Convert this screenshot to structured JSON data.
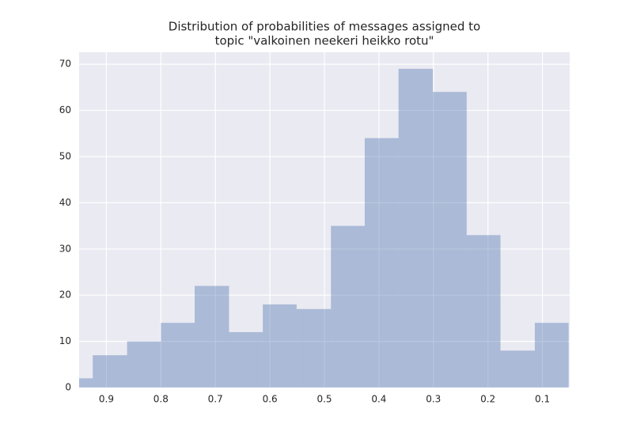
{
  "chart_data": {
    "type": "histogram",
    "title": [
      "Distribution of probabilities of messages assigned to",
      "topic \"valkoinen neekeri heikko rotu\""
    ],
    "bins": [
      0.95,
      0.925,
      0.862,
      0.8,
      0.738,
      0.675,
      0.613,
      0.551,
      0.488,
      0.426,
      0.364,
      0.301,
      0.239,
      0.177,
      0.114,
      0.052
    ],
    "values": [
      2,
      7,
      10,
      14,
      22,
      12,
      18,
      17,
      35,
      54,
      69,
      64,
      33,
      8,
      14
    ],
    "color": "#4c72b0",
    "xlim": [
      0.95,
      0.05
    ],
    "xticks": [
      0.9,
      0.8,
      0.7,
      0.6,
      0.5,
      0.4,
      0.3,
      0.2,
      0.1
    ],
    "ylim": [
      0,
      72.6
    ],
    "yticks": [
      0,
      10,
      20,
      30,
      40,
      50,
      60,
      70
    ],
    "grid": true
  }
}
